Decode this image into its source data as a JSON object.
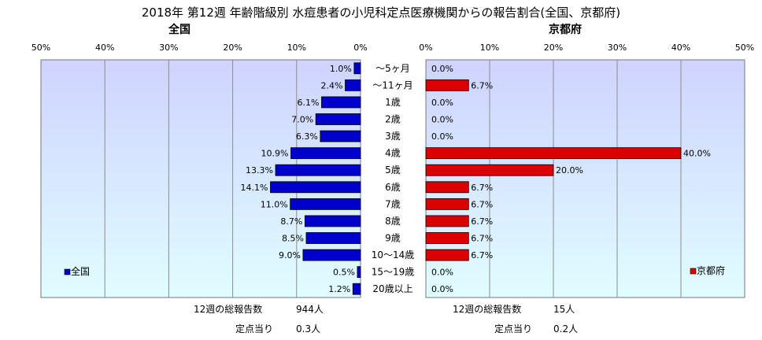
{
  "title": "2018年 第12週 年齢階級別 水痘患者の小児科定点医療機関からの報告割合(全国、京都府)",
  "colors": {
    "national": "#0000cc",
    "kyoto": "#dd0000",
    "plot_bg_top": "#cfd3ff",
    "plot_bg_bottom": "#e0fdff"
  },
  "legend": {
    "national": "全国",
    "kyoto": "京都府"
  },
  "summary": {
    "national": {
      "total_label": "12週の総報告数",
      "total_value": "944人",
      "per_label": "定点当り",
      "per_value": "0.3人"
    },
    "kyoto": {
      "total_label": "12週の総報告数",
      "total_value": "15人",
      "per_label": "定点当り",
      "per_value": "0.2人"
    }
  },
  "chart_data": [
    {
      "type": "bar",
      "title": "全国",
      "orientation": "horizontal",
      "x_direction": "reversed",
      "xlim": [
        0,
        50
      ],
      "ticks": [
        "50%",
        "40%",
        "30%",
        "20%",
        "10%",
        "0%"
      ],
      "grid": true,
      "legend_position": "bottom-left",
      "categories": [
        "～5ヶ月",
        "～11ヶ月",
        "1歳",
        "2歳",
        "3歳",
        "4歳",
        "5歳",
        "6歳",
        "7歳",
        "8歳",
        "9歳",
        "10～14歳",
        "15～19歳",
        "20歳以上"
      ],
      "series": [
        {
          "name": "全国",
          "values": [
            1.0,
            2.4,
            6.1,
            7.0,
            6.3,
            10.9,
            13.3,
            14.1,
            11.0,
            8.7,
            8.5,
            9.0,
            0.5,
            1.2
          ],
          "labels": [
            "1.0%",
            "2.4%",
            "6.1%",
            "7.0%",
            "6.3%",
            "10.9%",
            "13.3%",
            "14.1%",
            "11.0%",
            "8.7%",
            "8.5%",
            "9.0%",
            "0.5%",
            "1.2%"
          ]
        }
      ]
    },
    {
      "type": "bar",
      "title": "京都府",
      "orientation": "horizontal",
      "xlim": [
        0,
        50
      ],
      "ticks": [
        "0%",
        "10%",
        "20%",
        "30%",
        "40%",
        "50%"
      ],
      "grid": true,
      "legend_position": "bottom-right",
      "categories": [
        "～5ヶ月",
        "～11ヶ月",
        "1歳",
        "2歳",
        "3歳",
        "4歳",
        "5歳",
        "6歳",
        "7歳",
        "8歳",
        "9歳",
        "10～14歳",
        "15～19歳",
        "20歳以上"
      ],
      "series": [
        {
          "name": "京都府",
          "values": [
            0.0,
            6.7,
            0.0,
            0.0,
            0.0,
            40.0,
            20.0,
            6.7,
            6.7,
            6.7,
            6.7,
            6.7,
            0.0,
            0.0
          ],
          "labels": [
            "0.0%",
            "6.7%",
            "0.0%",
            "0.0%",
            "0.0%",
            "40.0%",
            "20.0%",
            "6.7%",
            "6.7%",
            "6.7%",
            "6.7%",
            "6.7%",
            "0.0%",
            "0.0%"
          ]
        }
      ]
    }
  ]
}
